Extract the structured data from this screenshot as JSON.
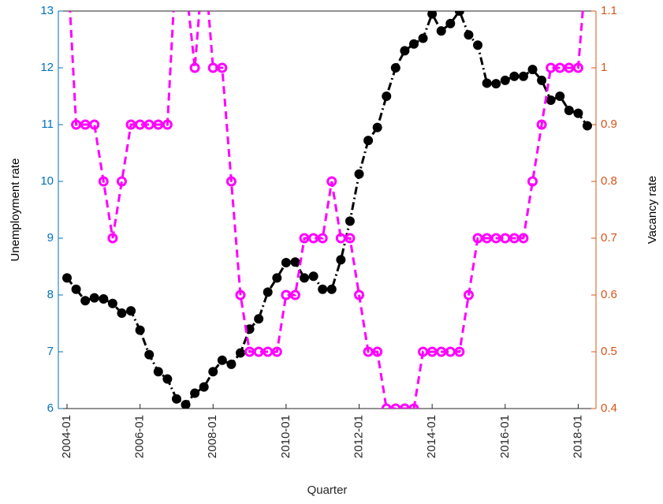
{
  "chart_data": {
    "type": "line",
    "x_label": "Quarter",
    "y_label": "Unemployment rate",
    "y2_label": "Vacancy rate",
    "categories": [
      "2004-01",
      null,
      null,
      null,
      null,
      null,
      null,
      null,
      "2006-01",
      null,
      null,
      null,
      null,
      null,
      null,
      null,
      "2008-01",
      null,
      null,
      null,
      null,
      null,
      null,
      null,
      "2010-01",
      null,
      null,
      null,
      null,
      null,
      null,
      null,
      "2012-01",
      null,
      null,
      null,
      null,
      null,
      null,
      null,
      "2014-01",
      null,
      null,
      null,
      null,
      null,
      null,
      null,
      "2016-01",
      null,
      null,
      null,
      null,
      null,
      null,
      null,
      "2018-01",
      null
    ],
    "series": [
      {
        "name": "Unemployment rate",
        "color": "#000000",
        "axis": "y",
        "values": [
          8.3,
          8.1,
          7.9,
          7.95,
          7.93,
          7.85,
          7.68,
          7.72,
          7.38,
          6.95,
          6.65,
          6.52,
          6.17,
          6.07,
          6.27,
          6.38,
          6.65,
          6.85,
          6.78,
          6.98,
          7.4,
          7.58,
          8.05,
          8.3,
          8.57,
          8.58,
          8.3,
          8.33,
          8.1,
          8.1,
          8.62,
          9.3,
          10.13,
          10.72,
          10.95,
          11.5,
          12.0,
          12.3,
          12.42,
          12.52,
          12.95,
          12.65,
          12.78,
          13.0,
          12.58,
          12.4,
          11.73,
          11.72,
          11.78,
          11.85,
          11.85,
          11.97,
          11.78,
          11.43,
          11.5,
          11.25,
          11.2,
          10.98
        ]
      },
      {
        "name": "Vacancy rate",
        "color": "#ff00ff",
        "axis": "y2",
        "values": [
          1.2,
          0.9,
          0.9,
          0.9,
          0.8,
          0.7,
          0.8,
          0.9,
          0.9,
          0.9,
          0.9,
          0.9,
          1.2,
          1.15,
          1.0,
          1.2,
          1.0,
          1.0,
          0.8,
          0.6,
          0.5,
          0.5,
          0.5,
          0.5,
          0.6,
          0.6,
          0.7,
          0.7,
          0.7,
          0.8,
          0.7,
          0.7,
          0.6,
          0.5,
          0.5,
          0.4,
          0.4,
          0.4,
          0.4,
          0.5,
          0.5,
          0.5,
          0.5,
          0.5,
          0.6,
          0.7,
          0.7,
          0.7,
          0.7,
          0.7,
          0.7,
          0.8,
          0.9,
          1.0,
          1.0,
          1.0,
          1.0,
          1.2
        ]
      }
    ],
    "ylim": [
      6,
      13
    ],
    "yticks": [
      6,
      7,
      8,
      9,
      10,
      11,
      12,
      13
    ],
    "y2lim": [
      0.4,
      1.1
    ],
    "y2ticks": [
      0.4,
      0.5,
      0.6,
      0.7,
      0.8,
      0.9,
      1,
      1.1
    ],
    "y_color": "#0072bd",
    "y2_color": "#d95319",
    "grid": false
  }
}
